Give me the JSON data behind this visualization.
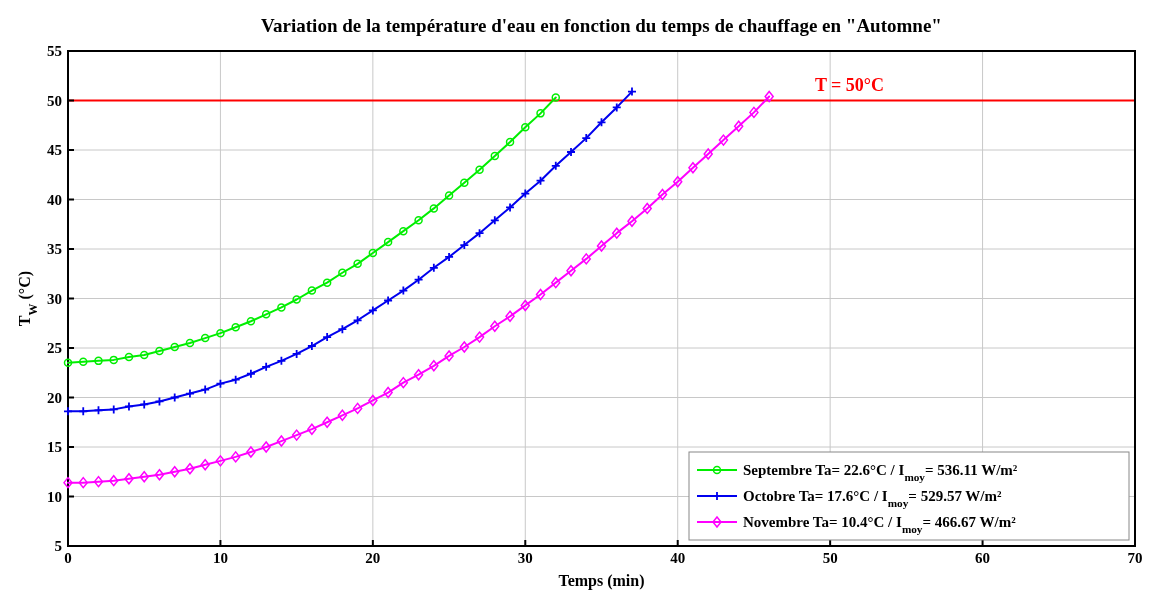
{
  "chart_data": {
    "type": "line",
    "title": "Variation de la température d'eau en fonction du temps de chauffage en \"Automne\"",
    "xlabel": "Temps (min)",
    "ylabel": "T$_{W}$ (°C)",
    "xlim": [
      0,
      70
    ],
    "xticks": [
      0,
      10,
      20,
      30,
      40,
      50,
      60,
      70
    ],
    "ylim": [
      5,
      55
    ],
    "yticks": [
      5,
      10,
      15,
      20,
      25,
      30,
      35,
      40,
      45,
      50,
      55
    ],
    "grid": true,
    "legend": "bottom right",
    "line_style": "solid",
    "ref_lines": [
      {
        "axis": "y",
        "value": 50,
        "label": "T = 50°C",
        "color": "#ff0000"
      }
    ],
    "series": [
      {
        "name": "Septembre Ta= 22.6°C / I$_{moy}$= 536.11 W/m²",
        "color": "#00ee00",
        "marker": "circle",
        "x": [
          0,
          1,
          2,
          3,
          4,
          5,
          6,
          7,
          8,
          9,
          10,
          11,
          12,
          13,
          14,
          15,
          16,
          17,
          18,
          19,
          20,
          21,
          22,
          23,
          24,
          25,
          26,
          27,
          28,
          29,
          30,
          31,
          32
        ],
        "values": [
          23.5,
          23.6,
          23.7,
          23.8,
          24.1,
          24.3,
          24.7,
          25.1,
          25.5,
          26.0,
          26.5,
          27.1,
          27.7,
          28.4,
          29.1,
          29.9,
          30.8,
          31.6,
          32.6,
          33.5,
          34.6,
          35.7,
          36.8,
          37.9,
          39.1,
          40.4,
          41.7,
          43.0,
          44.4,
          45.8,
          47.3,
          48.7,
          50.3
        ]
      },
      {
        "name": "Octobre Ta= 17.6°C / I$_{moy}$= 529.57 W/m²",
        "color": "#0000ee",
        "marker": "cross",
        "x": [
          0,
          1,
          2,
          3,
          4,
          5,
          6,
          7,
          8,
          9,
          10,
          11,
          12,
          13,
          14,
          15,
          16,
          17,
          18,
          19,
          20,
          21,
          22,
          23,
          24,
          25,
          26,
          27,
          28,
          29,
          30,
          31,
          32,
          33,
          34,
          35,
          36,
          37
        ],
        "values": [
          18.6,
          18.6,
          18.7,
          18.8,
          19.1,
          19.3,
          19.6,
          20.0,
          20.4,
          20.8,
          21.4,
          21.8,
          22.4,
          23.1,
          23.7,
          24.4,
          25.2,
          26.1,
          26.9,
          27.8,
          28.8,
          29.8,
          30.8,
          31.9,
          33.1,
          34.2,
          35.4,
          36.6,
          37.9,
          39.2,
          40.6,
          41.9,
          43.4,
          44.8,
          46.2,
          47.8,
          49.3,
          50.9
        ]
      },
      {
        "name": "Novembre Ta= 10.4°C / I$_{moy}$= 466.67 W/m²",
        "color": "#ff00ff",
        "marker": "diamond",
        "x": [
          0,
          1,
          2,
          3,
          4,
          5,
          6,
          7,
          8,
          9,
          10,
          11,
          12,
          13,
          14,
          15,
          16,
          17,
          18,
          19,
          20,
          21,
          22,
          23,
          24,
          25,
          26,
          27,
          28,
          29,
          30,
          31,
          32,
          33,
          34,
          35,
          36,
          37,
          38,
          39,
          40,
          41,
          42,
          43,
          44,
          45,
          46
        ],
        "values": [
          11.4,
          11.4,
          11.5,
          11.6,
          11.8,
          12.0,
          12.2,
          12.5,
          12.8,
          13.2,
          13.6,
          14.0,
          14.5,
          15.0,
          15.6,
          16.2,
          16.8,
          17.5,
          18.2,
          18.9,
          19.7,
          20.5,
          21.5,
          22.3,
          23.2,
          24.2,
          25.1,
          26.1,
          27.2,
          28.2,
          29.3,
          30.4,
          31.6,
          32.8,
          34.0,
          35.3,
          36.6,
          37.8,
          39.1,
          40.5,
          41.8,
          43.2,
          44.6,
          46.0,
          47.4,
          48.8,
          50.4
        ]
      }
    ]
  }
}
